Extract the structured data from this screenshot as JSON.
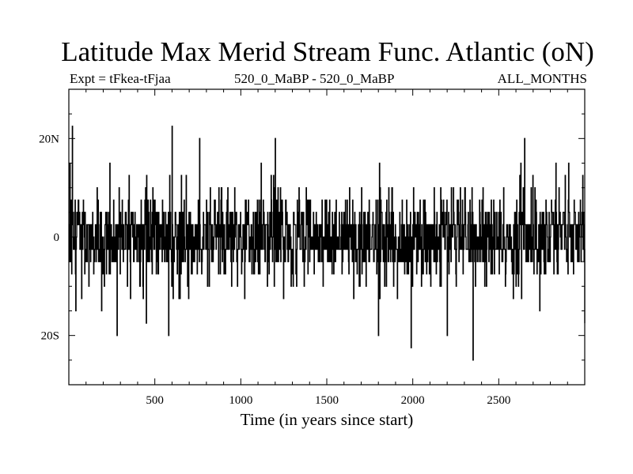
{
  "title": "Latitude Max Merid Stream Func. Atlantic (oN)",
  "subtitle_left": "Expt = tFkea-tFjaa",
  "subtitle_center": "520_0_MaBP - 520_0_MaBP",
  "subtitle_right": "ALL_MONTHS",
  "chart_data": {
    "type": "line",
    "title": "Latitude Max Merid Stream Func. Atlantic (oN)",
    "xlabel": "Time (in years since start)",
    "ylabel": "",
    "xlim": [
      0,
      3000
    ],
    "ylim": [
      -30,
      30
    ],
    "x_ticks": [
      {
        "value": 500,
        "label": "500"
      },
      {
        "value": 1000,
        "label": "1000"
      },
      {
        "value": 1500,
        "label": "1500"
      },
      {
        "value": 2000,
        "label": "2000"
      },
      {
        "value": 2500,
        "label": "2500"
      }
    ],
    "y_ticks": [
      {
        "value": 20,
        "label": "20N"
      },
      {
        "value": 0,
        "label": "0"
      },
      {
        "value": -20,
        "label": "20S"
      }
    ],
    "grid": false,
    "legend": "none",
    "series": [
      {
        "style": "step",
        "color": "#000000",
        "note_levels": [
          -20,
          -17.5,
          -15,
          -12.5,
          -10,
          -7.5,
          -5,
          -2.5,
          0,
          2.5,
          5,
          7.5,
          10,
          12.5,
          15,
          17.5,
          20,
          22.5
        ],
        "spikes": [
          {
            "x": 20,
            "y": 22.5
          },
          {
            "x": 40,
            "y": -15
          },
          {
            "x": 280,
            "y": -20
          },
          {
            "x": 450,
            "y": -17.5
          },
          {
            "x": 580,
            "y": -20
          },
          {
            "x": 600,
            "y": 22.5
          },
          {
            "x": 760,
            "y": 20
          },
          {
            "x": 1200,
            "y": 20
          },
          {
            "x": 1800,
            "y": -20
          },
          {
            "x": 1990,
            "y": -22.5
          },
          {
            "x": 2200,
            "y": -20
          },
          {
            "x": 2350,
            "y": -25
          },
          {
            "x": 2650,
            "y": 20
          },
          {
            "x": 3000,
            "y": 15
          },
          {
            "x": 3000,
            "y": -17.5
          }
        ]
      }
    ]
  }
}
